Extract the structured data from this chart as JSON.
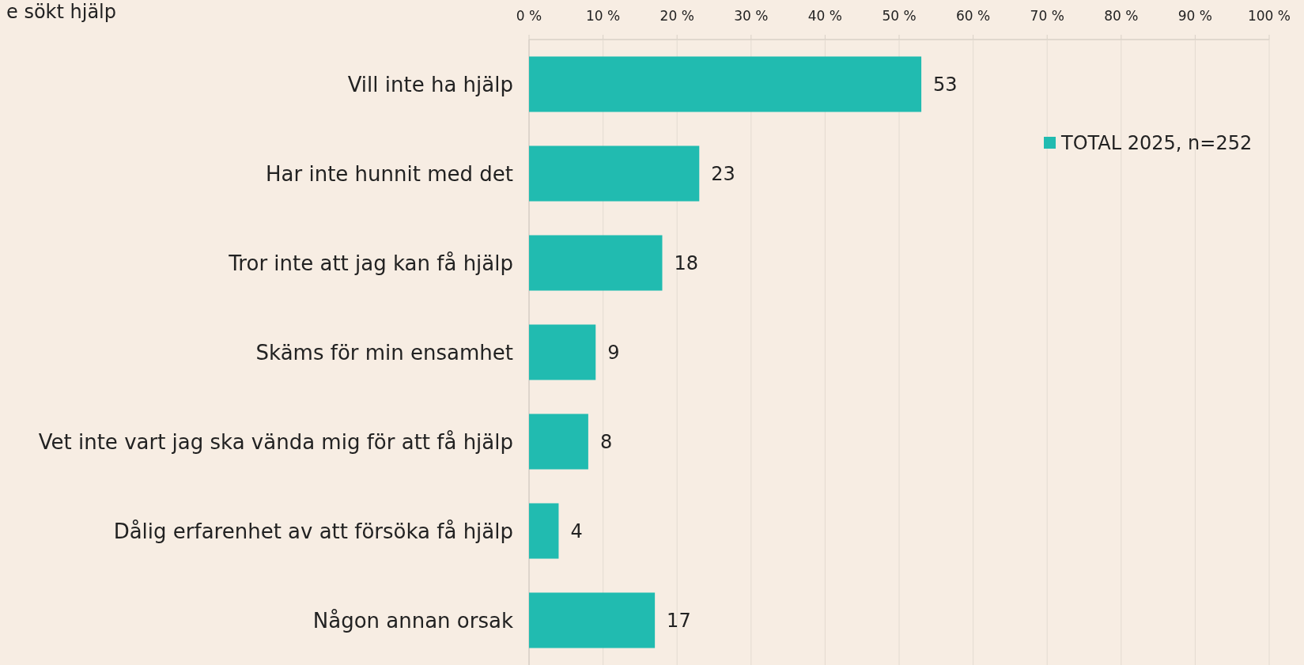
{
  "chart_data": {
    "type": "bar",
    "orientation": "horizontal",
    "title": "e sökt hjälp",
    "categories": [
      "Vill inte ha hjälp",
      "Har inte hunnit med det",
      "Tror inte att jag kan få hjälp",
      "Skäms för min ensamhet",
      "Vet inte vart jag ska vända mig för att få hjälp",
      "Dålig erfarenhet av att försöka få hjälp",
      "Någon annan orsak"
    ],
    "series": [
      {
        "name": "TOTAL 2025, n=252",
        "color": "#21bbb0",
        "values": [
          53,
          23,
          18,
          9,
          8,
          4,
          17
        ]
      }
    ],
    "xlim": [
      0,
      100
    ],
    "xticks": [
      {
        "value": 0,
        "label": "0 %"
      },
      {
        "value": 10,
        "label": "10 %"
      },
      {
        "value": 20,
        "label": "20 %"
      },
      {
        "value": 30,
        "label": "30 %"
      },
      {
        "value": 40,
        "label": "40 %"
      },
      {
        "value": 50,
        "label": "50 %"
      },
      {
        "value": 60,
        "label": "60 %"
      },
      {
        "value": 70,
        "label": "70 %"
      },
      {
        "value": 80,
        "label": "80 %"
      },
      {
        "value": 90,
        "label": "90 %"
      },
      {
        "value": 100,
        "label": "100 %"
      }
    ],
    "grid": "x",
    "legend": "top right",
    "data_labels": true
  }
}
